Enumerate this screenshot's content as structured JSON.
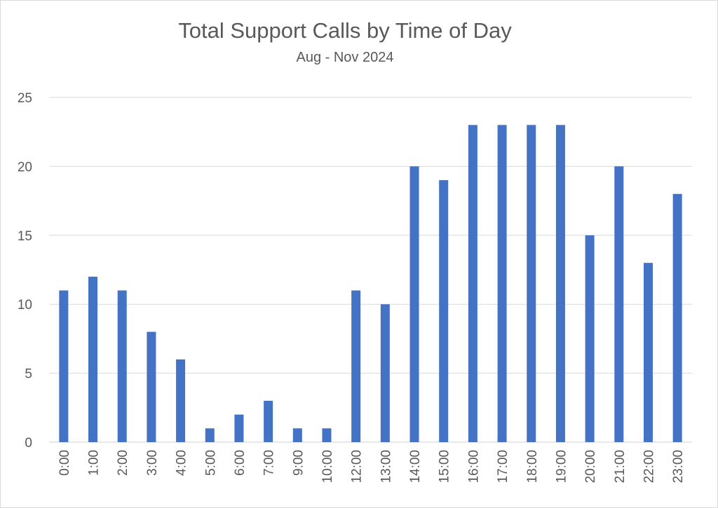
{
  "chart_data": {
    "type": "bar",
    "title": "Total Support Calls by Time of Day",
    "subtitle": "Aug - Nov 2024",
    "xlabel": "",
    "ylabel": "",
    "categories": [
      "0:00",
      "1:00",
      "2:00",
      "3:00",
      "4:00",
      "5:00",
      "6:00",
      "7:00",
      "9:00",
      "10:00",
      "12:00",
      "13:00",
      "14:00",
      "15:00",
      "16:00",
      "17:00",
      "18:00",
      "19:00",
      "20:00",
      "21:00",
      "22:00",
      "23:00"
    ],
    "values": [
      11,
      12,
      11,
      8,
      6,
      1,
      2,
      3,
      1,
      1,
      11,
      10,
      20,
      19,
      23,
      23,
      23,
      23,
      15,
      20,
      13,
      18
    ],
    "ylim": [
      0,
      25
    ],
    "yticks": [
      "0",
      "5",
      "10",
      "15",
      "20",
      "25"
    ],
    "grid": true,
    "legend": "none",
    "bar_color": "#4472C4"
  }
}
